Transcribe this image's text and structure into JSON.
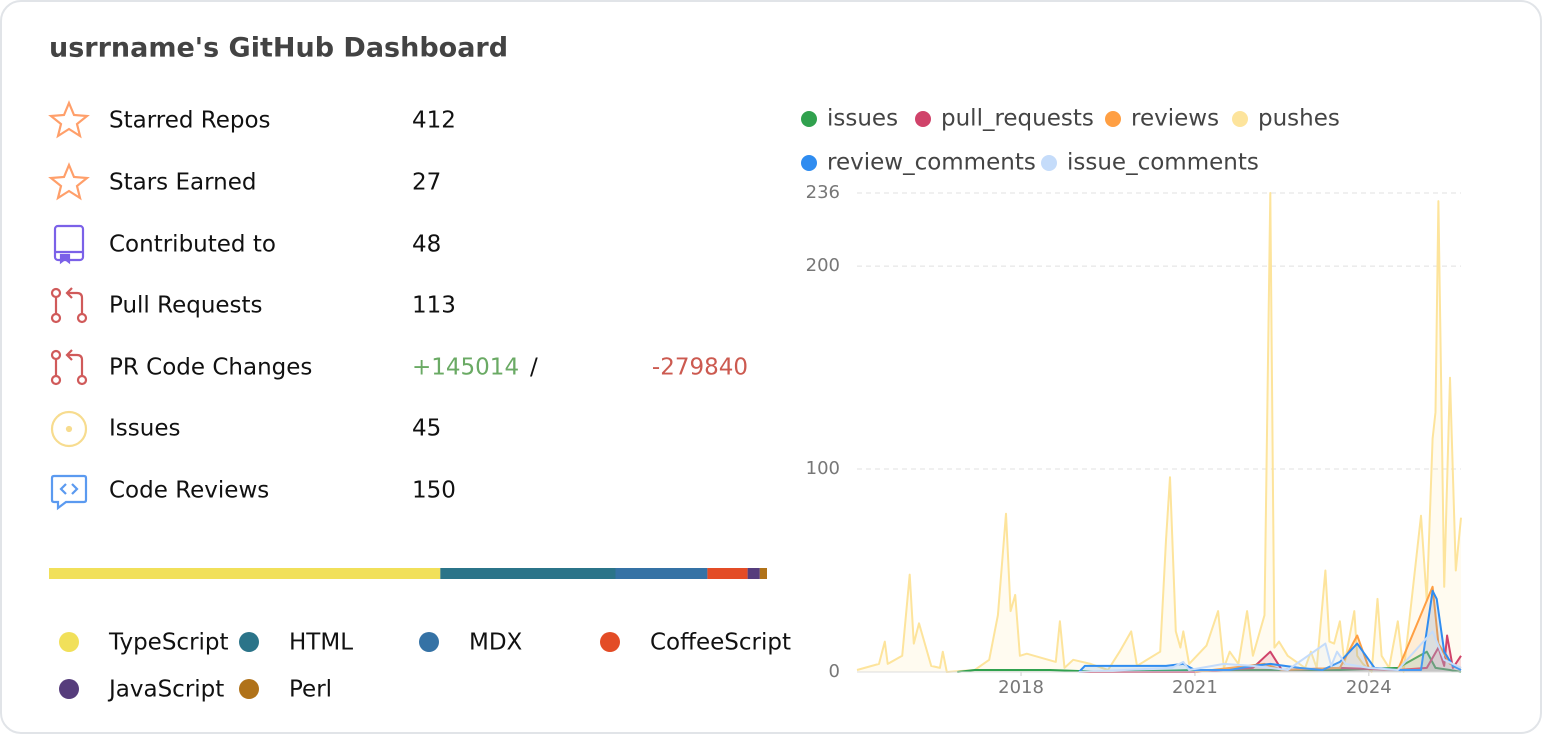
{
  "title": "usrrname's GitHub Dashboard",
  "stats": [
    {
      "label": "Starred Repos",
      "value": "412"
    },
    {
      "label": "Stars Earned",
      "value": "27"
    },
    {
      "label": "Contributed to",
      "value": "48"
    },
    {
      "label": "Pull Requests",
      "value": "113"
    },
    {
      "label": "PR Code Changes",
      "additions": "+145014",
      "separator": "/",
      "deletions": "-279840"
    },
    {
      "label": "Issues",
      "value": "45"
    },
    {
      "label": "Code Reviews",
      "value": "150"
    }
  ],
  "languages": {
    "names": [
      "TypeScript",
      "HTML",
      "MDX",
      "CoffeeScript",
      "JavaScript",
      "Perl"
    ],
    "colors": [
      "#f1e05a",
      "#2b7489",
      "#3572a5",
      "#e34c26",
      "#563d7c",
      "#b07219"
    ],
    "values": [
      54.5,
      24.4,
      12.8,
      5.6,
      1.7,
      1.0
    ]
  },
  "chart_data": {
    "type": "line",
    "xlim": [
      2015.17,
      2025.59
    ],
    "xticks": [
      2018,
      2021,
      2024
    ],
    "ylim": [
      0,
      236
    ],
    "yticks": [
      0,
      100,
      200,
      236
    ],
    "grid": true,
    "series": [
      {
        "name": "issues",
        "color": "#30a14e",
        "x": [
          2016.9,
          2017.2,
          2018.5,
          2019.5,
          2021,
          2022.5,
          2023.5,
          2024.5,
          2025.0,
          2025.15,
          2025.4,
          2025.59
        ],
        "values": [
          0,
          1,
          1,
          0,
          1,
          1,
          1,
          2,
          10,
          2,
          1,
          0
        ]
      },
      {
        "name": "pull_requests",
        "color": "#d0436a",
        "x": [
          2019,
          2021,
          2022,
          2022.3,
          2022.5,
          2023.5,
          2024.5,
          2025.0,
          2025.2,
          2025.3,
          2025.35,
          2025.45,
          2025.59
        ],
        "values": [
          0,
          0,
          2,
          10,
          1,
          2,
          1,
          2,
          12,
          3,
          18,
          2,
          8
        ]
      },
      {
        "name": "reviews",
        "color": "#ff9f43",
        "x": [
          2021,
          2022.2,
          2022.5,
          2023.5,
          2023.8,
          2024,
          2024.5,
          2025.1,
          2025.2,
          2025.4,
          2025.59
        ],
        "values": [
          0,
          4,
          1,
          2,
          18,
          2,
          1,
          42,
          14,
          4,
          2
        ]
      },
      {
        "name": "pushes",
        "color": "#fde49c",
        "x": [
          2015.17,
          2015.55,
          2015.65,
          2015.7,
          2015.95,
          2016.08,
          2016.15,
          2016.24,
          2016.45,
          2016.6,
          2016.65,
          2016.72,
          2017.2,
          2017.45,
          2017.6,
          2017.74,
          2017.82,
          2017.9,
          2017.98,
          2018.1,
          2018.6,
          2018.67,
          2018.75,
          2018.9,
          2019.2,
          2019.5,
          2019.7,
          2019.9,
          2020.0,
          2020.4,
          2020.5,
          2020.57,
          2020.67,
          2020.75,
          2020.8,
          2020.9,
          2021.2,
          2021.4,
          2021.5,
          2021.6,
          2021.75,
          2021.9,
          2022.0,
          2022.2,
          2022.3,
          2022.37,
          2022.45,
          2022.6,
          2022.9,
          2023.0,
          2023.1,
          2023.25,
          2023.32,
          2023.4,
          2023.5,
          2023.58,
          2023.75,
          2023.8,
          2023.9,
          2024.05,
          2024.15,
          2024.22,
          2024.35,
          2024.42,
          2024.5,
          2024.6,
          2024.9,
          2025.0,
          2025.1,
          2025.15,
          2025.2,
          2025.3,
          2025.4,
          2025.5,
          2025.59
        ],
        "values": [
          1,
          4,
          15,
          4,
          8,
          48,
          14,
          24,
          3,
          2,
          10,
          0,
          1,
          6,
          28,
          78,
          30,
          38,
          8,
          9,
          5,
          25,
          2,
          6,
          4,
          1,
          10,
          20,
          3,
          10,
          65,
          96,
          20,
          12,
          20,
          4,
          13,
          30,
          2,
          10,
          4,
          30,
          8,
          28,
          236,
          12,
          15,
          8,
          2,
          10,
          2,
          50,
          15,
          14,
          25,
          4,
          30,
          8,
          4,
          0,
          36,
          8,
          2,
          13,
          25,
          0,
          77,
          35,
          115,
          128,
          232,
          42,
          145,
          50,
          76
        ]
      },
      {
        "name": "review_comments",
        "color": "#2f8cf0",
        "x": [
          2019.0,
          2019.1,
          2020,
          2020.5,
          2020.8,
          2021,
          2021.6,
          2022,
          2022.3,
          2022.8,
          2023.2,
          2023.5,
          2023.8,
          2024.1,
          2024.5,
          2024.9,
          2025.1,
          2025.17,
          2025.3,
          2025.45,
          2025.59
        ],
        "values": [
          0,
          3,
          3,
          3,
          4,
          1,
          1,
          3,
          4,
          2,
          1,
          5,
          14,
          2,
          1,
          1,
          40,
          36,
          10,
          3,
          1
        ]
      },
      {
        "name": "issue_comments",
        "color": "#c5dcfa",
        "x": [
          2019.0,
          2020.6,
          2020.8,
          2020.9,
          2021.5,
          2022.0,
          2022.6,
          2023.25,
          2023.35,
          2023.45,
          2023.6,
          2024.0,
          2024.5,
          2025.1,
          2025.3,
          2025.59
        ],
        "values": [
          0,
          2,
          5,
          1,
          4,
          3,
          1,
          14,
          3,
          10,
          4,
          2,
          1,
          20,
          6,
          2
        ]
      }
    ]
  }
}
